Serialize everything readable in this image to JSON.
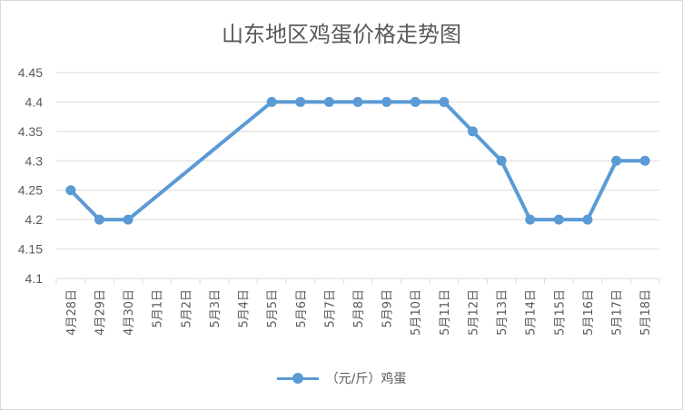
{
  "chart_data": {
    "type": "line",
    "title": "山东地区鸡蛋价格走势图",
    "categories": [
      "4月28日",
      "4月29日",
      "4月30日",
      "5月1日",
      "5月2日",
      "5月3日",
      "5月4日",
      "5月5日",
      "5月6日",
      "5月7日",
      "5月8日",
      "5月9日",
      "5月10日",
      "5月11日",
      "5月12日",
      "5月13日",
      "5月14日",
      "5月15日",
      "5月16日",
      "5月17日",
      "5月18日"
    ],
    "series": [
      {
        "name": "（元/斤）鸡蛋",
        "values": [
          4.25,
          4.2,
          4.2,
          null,
          null,
          null,
          null,
          4.4,
          4.4,
          4.4,
          4.4,
          4.4,
          4.4,
          4.4,
          4.35,
          4.3,
          4.2,
          4.2,
          4.2,
          4.3,
          4.3
        ]
      }
    ],
    "yticks": [
      "4.1",
      "4.15",
      "4.2",
      "4.25",
      "4.3",
      "4.35",
      "4.4",
      "4.45"
    ],
    "ylim": [
      4.1,
      4.45
    ],
    "grid": true,
    "legend_position": "bottom",
    "colors": {
      "line": "#5b9bd5",
      "grid": "#d9d9d9",
      "text": "#595959"
    }
  }
}
